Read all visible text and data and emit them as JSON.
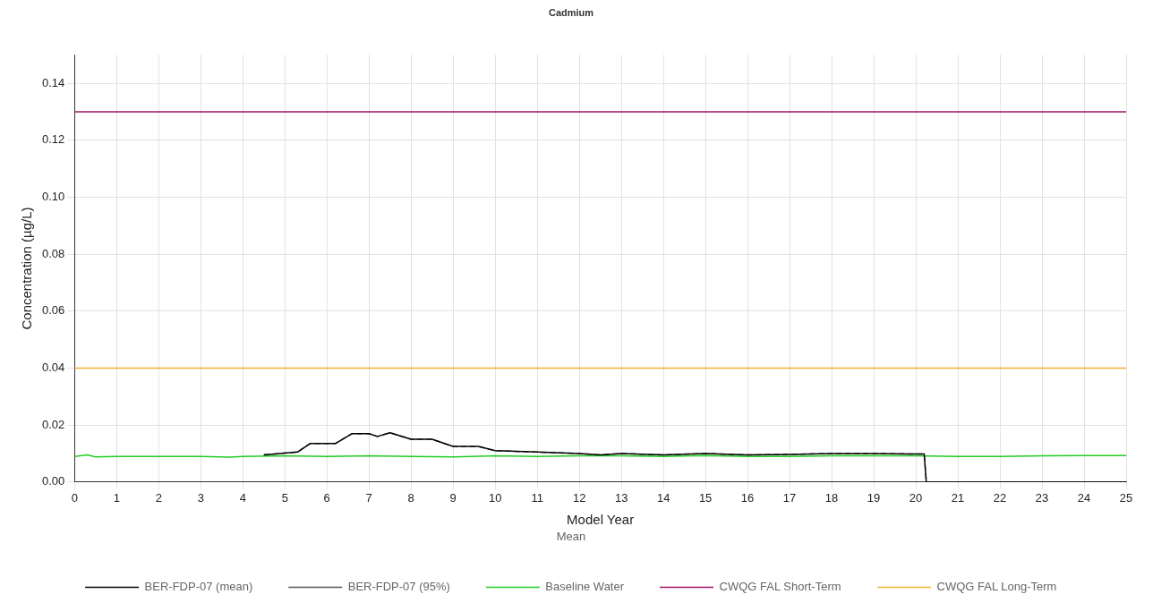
{
  "chart_data": {
    "type": "line",
    "title": "Cadmium",
    "xlabel": "Model Year",
    "ylabel": "Concentration (µg/L)",
    "legend_title": "Mean",
    "xlim": [
      0,
      25
    ],
    "xticks": [
      0,
      1,
      2,
      3,
      4,
      5,
      6,
      7,
      8,
      9,
      10,
      11,
      12,
      13,
      14,
      15,
      16,
      17,
      18,
      19,
      20,
      21,
      22,
      23,
      24,
      25
    ],
    "ylim": [
      0,
      0.15
    ],
    "yticks": [
      {
        "value": 0,
        "label": "0.00"
      },
      {
        "value": 0.02,
        "label": "0.02"
      },
      {
        "value": 0.04,
        "label": "0.04"
      },
      {
        "value": 0.06,
        "label": "0.06"
      },
      {
        "value": 0.08,
        "label": "0.08"
      },
      {
        "value": 0.1,
        "label": "0.10"
      },
      {
        "value": 0.12,
        "label": "0.12"
      },
      {
        "value": 0.14,
        "label": "0.14"
      }
    ],
    "grid": true,
    "legend": "bottom",
    "marker": "none",
    "series": [
      {
        "name": "BER-FDP-07 (mean)",
        "color": "#000000",
        "line_style": "solid",
        "x": [
          4.5,
          5.3,
          5.6,
          6.2,
          6.6,
          7.0,
          7.2,
          7.5,
          8.0,
          8.5,
          9.0,
          9.6,
          10.0,
          11.0,
          12.0,
          12.5,
          13.0,
          14.0,
          15.0,
          16.0,
          17.0,
          18.0,
          19.0,
          20.2,
          20.25,
          25
        ],
        "values": [
          0.0095,
          0.0105,
          0.0135,
          0.0135,
          0.017,
          0.017,
          0.016,
          0.0173,
          0.015,
          0.015,
          0.0125,
          0.0125,
          0.011,
          0.0105,
          0.01,
          0.0095,
          0.01,
          0.0095,
          0.01,
          0.0095,
          0.0097,
          0.01,
          0.01,
          0.0098,
          0,
          0
        ]
      },
      {
        "name": "BER-FDP-07 (95%)",
        "color": "#555555",
        "line_style": "dashed",
        "x": [
          4.5,
          5.3,
          5.6,
          6.2,
          6.6,
          7.0,
          7.2,
          7.5,
          8.0,
          8.5,
          9.0,
          9.6,
          10.0,
          11.0,
          12.0,
          12.5,
          13.0,
          14.0,
          15.0,
          16.0,
          17.0,
          18.0,
          19.0,
          20.2,
          20.25,
          25
        ],
        "values": [
          0.0095,
          0.0105,
          0.0135,
          0.0135,
          0.017,
          0.017,
          0.016,
          0.0173,
          0.015,
          0.015,
          0.0125,
          0.0125,
          0.011,
          0.0105,
          0.01,
          0.0095,
          0.01,
          0.0095,
          0.01,
          0.0095,
          0.0097,
          0.01,
          0.01,
          0.0098,
          0,
          0
        ]
      },
      {
        "name": "Baseline Water",
        "color": "#22cc22",
        "line_style": "solid",
        "x": [
          0,
          0.3,
          0.5,
          1,
          2,
          3,
          3.7,
          4,
          5,
          6,
          7,
          8,
          9,
          10,
          11,
          12,
          13,
          14,
          15,
          16,
          17,
          18,
          19,
          20,
          21,
          22,
          23,
          24,
          25
        ],
        "values": [
          0.009,
          0.0095,
          0.0088,
          0.009,
          0.009,
          0.009,
          0.0087,
          0.009,
          0.0092,
          0.009,
          0.0092,
          0.009,
          0.0088,
          0.0092,
          0.009,
          0.0092,
          0.0092,
          0.009,
          0.0093,
          0.009,
          0.009,
          0.0092,
          0.0092,
          0.0092,
          0.009,
          0.009,
          0.0092,
          0.0093,
          0.0093
        ]
      },
      {
        "name": "CWQG FAL Short-Term",
        "color": "#a0106a",
        "line_style": "solid",
        "x": [
          0,
          25
        ],
        "values": [
          0.13,
          0.13
        ]
      },
      {
        "name": "CWQG FAL Long-Term",
        "color": "#f0b030",
        "line_style": "solid",
        "x": [
          0,
          25
        ],
        "values": [
          0.04,
          0.04
        ]
      }
    ]
  }
}
